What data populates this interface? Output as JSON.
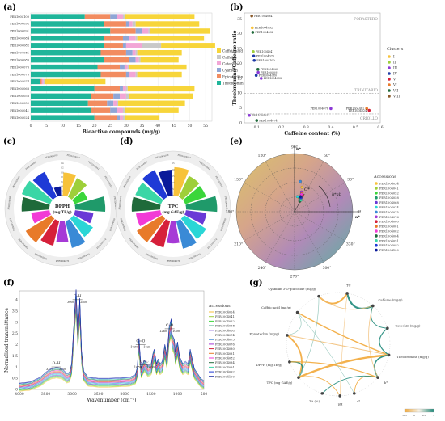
{
  "panels": {
    "a": "(a)",
    "b": "(b)",
    "c": "(c)",
    "d": "(d)",
    "e": "(e)",
    "f": "(f)",
    "g": "(g)"
  },
  "colors": {
    "theobromine": "#1fb59a",
    "epicatechin": "#f28c60",
    "cyanidin": "#8fa6d6",
    "catechin": "#f2a6d6",
    "caffeine": "#c9c9c9",
    "caffeic_acid": "#f7d53a",
    "clusters": [
      "#f7c23a",
      "#9ecf3a",
      "#8c3ad6",
      "#1f3aa6",
      "#d6203a",
      "#e87a2a",
      "#1f6a3a",
      "#8a5a2a"
    ],
    "accessions": [
      "#f7c23a",
      "#9ecf3a",
      "#3ad63a",
      "#1f9a6a",
      "#6a3ad6",
      "#2ad6d6",
      "#3a8ad6",
      "#a63ad6",
      "#d6203a",
      "#e87a2a",
      "#f23ad6",
      "#1f6a3a",
      "#3ad6a6",
      "#1f3ad6",
      "#0a1a9a"
    ]
  },
  "chart_data": [
    {
      "panel": "a",
      "type": "bar",
      "orientation": "horizontal",
      "stacked": true,
      "categories": [
        "PER1004100",
        "PER1004092",
        "PER1004091",
        "PER1004084",
        "PER1004082",
        "PER1004081",
        "PER1004080",
        "PER1004076",
        "PER1004075",
        "PER1004074",
        "PER1004068",
        "PER1004058",
        "PER1004052",
        "PER1004041",
        "PER1004024"
      ],
      "series": [
        {
          "name": "Theobromine",
          "key": "theobromine",
          "values": [
            17,
            23,
            25,
            23,
            23,
            22,
            23,
            21,
            22,
            3,
            20,
            19,
            18,
            19,
            20
          ]
        },
        {
          "name": "Epicatechin",
          "key": "epicatechin",
          "values": [
            8,
            7,
            8,
            6,
            6,
            8,
            8,
            7,
            8,
            0.5,
            8,
            7,
            6,
            6,
            7
          ]
        },
        {
          "name": "Cyanidin",
          "key": "cyanidin",
          "values": [
            2,
            1,
            2,
            2,
            1,
            2,
            2,
            1.5,
            1,
            0,
            1,
            2,
            2,
            2,
            1
          ]
        },
        {
          "name": "Catechin",
          "key": "catechin",
          "values": [
            2,
            1,
            2,
            2,
            5,
            1,
            1,
            1,
            2,
            0.5,
            1,
            2,
            1,
            2,
            1
          ]
        },
        {
          "name": "Caffeine",
          "key": "caffeine",
          "values": [
            0.5,
            1,
            0.5,
            0.5,
            6,
            0.5,
            0.5,
            0.5,
            0.5,
            0.5,
            0.5,
            1,
            0.5,
            0.5,
            0.5
          ]
        },
        {
          "name": "Caffeic acid",
          "key": "caffeic_acid",
          "values": [
            22,
            20,
            19,
            21,
            17,
            14,
            12,
            18,
            14,
            19,
            21,
            20,
            21,
            17,
            11
          ]
        }
      ],
      "xlabel": "Bioactive compounds (mg/g)",
      "xlim": [
        0,
        57
      ],
      "xticks": [
        0,
        5,
        10,
        15,
        20,
        25,
        30,
        35,
        40,
        45,
        50,
        55
      ]
    },
    {
      "panel": "b",
      "type": "scatter",
      "xlabel": "Caffeine content (%)",
      "ylabel": "Theobromine/Caffeine ratio",
      "xlim": [
        0.05,
        0.6
      ],
      "ylim": [
        0,
        37
      ],
      "xticks": [
        0.1,
        0.2,
        0.3,
        0.4,
        0.5,
        0.6
      ],
      "yticks": [
        0,
        5,
        10,
        15,
        20,
        25,
        30,
        35
      ],
      "thresholds": [
        {
          "y": 10,
          "label": "TRINITARIO"
        },
        {
          "y": 3,
          "label": "CRIOLLO"
        }
      ],
      "region_labels": [
        "FORASTERO",
        "TRINITARIO",
        "CRIOLLO"
      ],
      "legend_title": "Clusters",
      "legend": [
        "I",
        "II",
        "III",
        "IV",
        "V",
        "VI",
        "VII",
        "VIII"
      ],
      "points": [
        {
          "label": "PER1004084",
          "x": 0.08,
          "y": 36,
          "cluster": 7
        },
        {
          "label": "PER1004092",
          "x": 0.082,
          "y": 32,
          "cluster": 0
        },
        {
          "label": "PER1004082",
          "x": 0.084,
          "y": 30.5,
          "cluster": 6
        },
        {
          "label": "PER1004041",
          "x": 0.086,
          "y": 24,
          "cluster": 1
        },
        {
          "label": "PER1004075",
          "x": 0.088,
          "y": 22.5,
          "cluster": 3
        },
        {
          "label": "PER1004100",
          "x": 0.09,
          "y": 21,
          "cluster": 3
        },
        {
          "label": "PER1004068",
          "x": 0.105,
          "y": 18,
          "cluster": 6
        },
        {
          "label": "PER1004091",
          "x": 0.106,
          "y": 17,
          "cluster": 2
        },
        {
          "label": "PER1004080",
          "x": 0.098,
          "y": 16,
          "cluster": 3
        },
        {
          "label": "PER1004058",
          "x": 0.118,
          "y": 15,
          "cluster": 2
        },
        {
          "label": "PER1004052",
          "x": 0.07,
          "y": 2.5,
          "cluster": 2
        },
        {
          "label": "PER1004074",
          "x": 0.1,
          "y": 0.8,
          "cluster": 6
        },
        {
          "label": "PER1004076",
          "x": 0.4,
          "y": 4.8,
          "cluster": 2
        },
        {
          "label": "PER1004081",
          "x": 0.545,
          "y": 4.8,
          "cluster": 5
        },
        {
          "label": "PER1004024",
          "x": 0.555,
          "y": 4.2,
          "cluster": 4
        }
      ]
    },
    {
      "panel": "c",
      "type": "bar",
      "polar": true,
      "title": "DPPH",
      "subtitle": "(mg TE/g)",
      "rticks": [
        0,
        2,
        4,
        6,
        8,
        10,
        12,
        14
      ],
      "rmax": 14,
      "categories": [
        "PER1004024",
        "PER1004041",
        "PER1004052",
        "PER1004058",
        "PER1004068",
        "PER1004074",
        "PER1004075",
        "PER1004076",
        "PER1004080",
        "PER1004081",
        "PER1004082",
        "PER1004084",
        "PER1004091",
        "PER1004092",
        "PER1004100"
      ],
      "values": [
        10,
        9,
        6,
        13,
        8,
        10,
        12,
        9,
        11,
        13,
        8,
        12,
        13,
        12,
        4
      ]
    },
    {
      "panel": "d",
      "type": "bar",
      "polar": true,
      "title": "TPC",
      "subtitle": "(mg GAE/g)",
      "rticks": [
        0,
        5,
        10,
        15,
        20,
        25
      ],
      "rmax": 25,
      "categories": [
        "PER1004024",
        "PER1004041",
        "PER1004052",
        "PER1004058",
        "PER1004068",
        "PER1004074",
        "PER1004075",
        "PER1004076",
        "PER1004080",
        "PER1004081",
        "PER1004082",
        "PER1004084",
        "PER1004091",
        "PER1004092",
        "PER1004100"
      ],
      "values": [
        22,
        18,
        17,
        24,
        16,
        20,
        22,
        17,
        21,
        23,
        19,
        22,
        21,
        23,
        20
      ]
    },
    {
      "panel": "e",
      "type": "scatter",
      "polar": true,
      "axis_labels": {
        "b": "b*",
        "a": "a*",
        "c": "C*",
        "h": "h*ab"
      },
      "angle_ticks": [
        "90°",
        "60°",
        "30°",
        "0°",
        "330°",
        "300°",
        "270°",
        "240°",
        "210°",
        "180°",
        "150°",
        "120°"
      ],
      "legend_title": "Accessions",
      "legend": [
        "PER1004024",
        "PER1004041",
        "PER1004052",
        "PER1004058",
        "PER1004068",
        "PER1004074",
        "PER1004075",
        "PER1004076",
        "PER1004080",
        "PER1004081",
        "PER1004082",
        "PER1004084",
        "PER1004091",
        "PER1004092",
        "PER1004100"
      ],
      "points": [
        [
          0.13,
          0.42
        ],
        [
          0.08,
          0.24
        ],
        [
          0.1,
          0.22
        ],
        [
          0.12,
          0.3
        ],
        [
          0.09,
          0.2
        ],
        [
          0.05,
          0.26
        ],
        [
          0.1,
          0.52
        ],
        [
          0.12,
          0.34
        ],
        [
          0.14,
          0.28
        ],
        [
          0.13,
          0.32
        ],
        [
          0.12,
          0.3
        ],
        [
          0.09,
          0.18
        ],
        [
          0.11,
          0.2
        ],
        [
          0.11,
          0.24
        ],
        [
          0.1,
          0.26
        ]
      ]
    },
    {
      "panel": "f",
      "type": "line",
      "xlabel": "Wavenumber (cm⁻¹)",
      "ylabel": "Normalized transmittance",
      "xlim": [
        4000,
        500
      ],
      "ylim": [
        0,
        4.4
      ],
      "xticks": [
        4000,
        3500,
        3000,
        2500,
        2000,
        1500,
        1000,
        500
      ],
      "yticks": [
        0,
        0.5,
        1,
        1.5,
        2,
        2.5,
        3,
        3.5,
        4
      ],
      "annotations": [
        {
          "label": "C–H",
          "x": 2900,
          "y": 3.9,
          "sub": [
            "3000",
            "2800"
          ]
        },
        {
          "label": "O–H",
          "x": 3300,
          "y": 0.9,
          "sub": [
            "3375",
            "3200"
          ]
        },
        {
          "label": "C=O",
          "x": 1700,
          "y": 1.9,
          "sub": [
            "1730",
            "1625"
          ]
        },
        {
          "label": "C=C",
          "x": 1630,
          "y": 1.0,
          "sub": [
            "1680",
            "1600"
          ]
        },
        {
          "label": "C–O",
          "x": 1150,
          "y": 2.6,
          "sub": [
            "1260",
            "1000"
          ]
        }
      ],
      "legend_title": "Accessions",
      "legend": [
        "PER1004024",
        "PER1004041",
        "PER1004052",
        "PER1004058",
        "PER1004068",
        "PER1004074",
        "PER1004075",
        "PER1004076",
        "PER1004080",
        "PER1004081",
        "PER1004082",
        "PER1004084",
        "PER1004091",
        "PER1004092",
        "PER1004100"
      ],
      "spectrum": {
        "x": [
          4000,
          3800,
          3600,
          3500,
          3400,
          3300,
          3200,
          3100,
          3050,
          3010,
          2960,
          2925,
          2890,
          2855,
          2820,
          2780,
          2700,
          2500,
          2300,
          2100,
          1900,
          1800,
          1760,
          1745,
          1730,
          1710,
          1690,
          1660,
          1630,
          1600,
          1560,
          1500,
          1460,
          1440,
          1400,
          1370,
          1330,
          1290,
          1240,
          1200,
          1160,
          1120,
          1100,
          1060,
          1040,
          1000,
          960,
          900,
          850,
          800,
          760,
          720,
          680,
          620,
          560,
          500
        ],
        "y": [
          0.1,
          0.15,
          0.35,
          0.55,
          0.7,
          0.75,
          0.72,
          0.5,
          0.55,
          0.9,
          2.8,
          3.95,
          2.2,
          3.6,
          1.4,
          0.6,
          0.35,
          0.3,
          0.3,
          0.32,
          0.35,
          0.45,
          0.8,
          1.7,
          1.95,
          1.3,
          0.75,
          0.9,
          1.05,
          0.95,
          0.8,
          0.9,
          1.4,
          1.5,
          0.9,
          1.1,
          0.9,
          1.0,
          1.7,
          1.2,
          2.4,
          2.75,
          2.1,
          1.9,
          1.4,
          1.8,
          1.2,
          0.9,
          1.0,
          0.9,
          1.5,
          1.1,
          0.7,
          0.5,
          0.3,
          0.2
        ]
      }
    },
    {
      "panel": "g",
      "type": "diagram",
      "nodes": [
        "Cyanidin 3-O-glucoside (mg/g)",
        "TC",
        "Caffeine (mg/g)",
        "Caffeic acid (mg/g)",
        "Catechin (mg/g)",
        "Epicatechin (mg/g)",
        "Theobromine (mg/g)",
        "DPPH (mg TE/g)",
        "TPC (mg GAE/g)",
        "b*",
        "a*",
        "TA (%)",
        "pH"
      ],
      "colorbar_ticks": [
        "-0.5",
        "0",
        "0.5",
        "1"
      ]
    }
  ]
}
